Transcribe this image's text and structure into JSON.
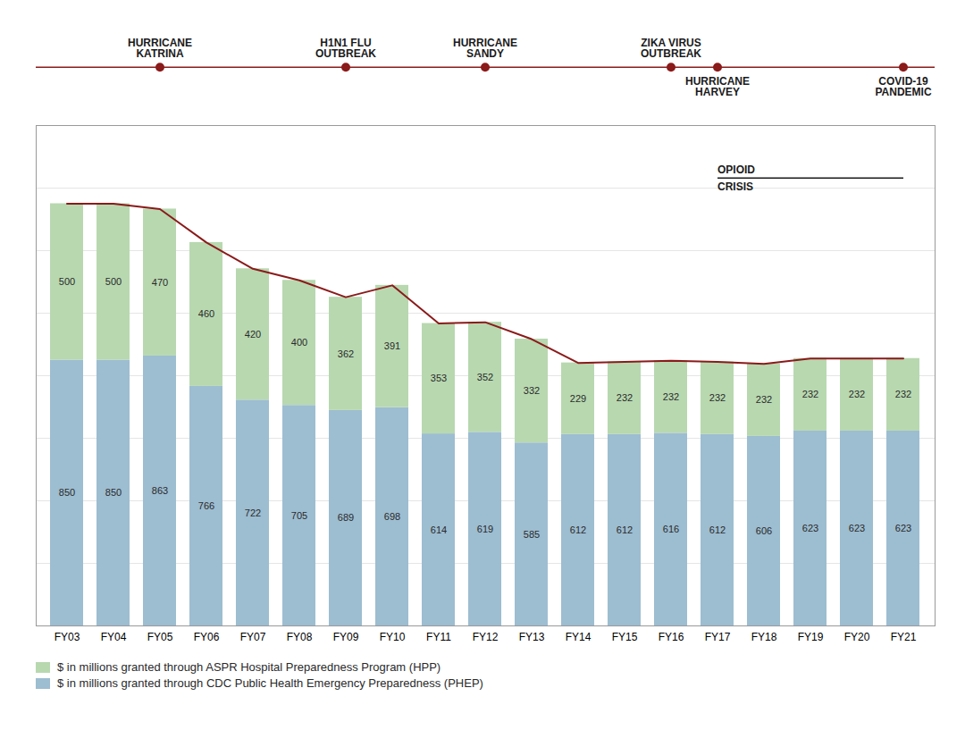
{
  "chart_data": {
    "type": "bar",
    "stacked": true,
    "categories": [
      "FY03",
      "FY04",
      "FY05",
      "FY06",
      "FY07",
      "FY08",
      "FY09",
      "FY10",
      "FY11",
      "FY12",
      "FY13",
      "FY14",
      "FY15",
      "FY16",
      "FY17",
      "FY18",
      "FY19",
      "FY20",
      "FY21"
    ],
    "series": [
      {
        "name": "$ in millions granted through ASPR Hospital Preparedness Program (HPP)",
        "color": "#b8d8b0",
        "values": [
          500,
          500,
          470,
          460,
          420,
          400,
          362,
          391,
          353,
          352,
          332,
          229,
          232,
          232,
          232,
          232,
          232,
          232,
          232
        ]
      },
      {
        "name": "$ in millions granted through CDC Public Health Emergency Preparedness (PHEP)",
        "color": "#9dbdd1",
        "values": [
          850,
          850,
          863,
          766,
          722,
          705,
          689,
          698,
          614,
          619,
          585,
          612,
          612,
          616,
          612,
          606,
          623,
          623,
          623
        ]
      },
      {
        "type": "line",
        "color": "#8b1a1a",
        "values": [
          1350,
          1350,
          1333,
          1226,
          1142,
          1105,
          1051,
          1089,
          967,
          971,
          917,
          841,
          844,
          848,
          844,
          838,
          855,
          855,
          855
        ]
      }
    ],
    "ylim": [
      0,
      1600
    ],
    "yticks": [
      200,
      400,
      600,
      800,
      1000,
      1200,
      1400
    ],
    "grid": true,
    "data_labels": true,
    "tick_labels": "x",
    "legend": "bottom",
    "annotations": [
      {
        "text": "OPIOID\nCRISIS",
        "x": "FY17"
      }
    ],
    "timeline": {
      "color": "#8b1a1a",
      "above": [
        {
          "label": "HURRICANE\nKATRINA",
          "x": "FY05"
        },
        {
          "label": "H1N1 FLU\nOUTBREAK",
          "x": "FY09"
        },
        {
          "label": "HURRICANE\nSANDY",
          "x": "FY12"
        },
        {
          "label": "ZIKA VIRUS\nOUTBREAK",
          "x": "FY16"
        }
      ],
      "below": [
        {
          "label": "HURRICANE\nHARVEY",
          "x": "FY17"
        },
        {
          "label": "COVID-19\nPANDEMIC",
          "x": "FY21"
        }
      ]
    }
  }
}
